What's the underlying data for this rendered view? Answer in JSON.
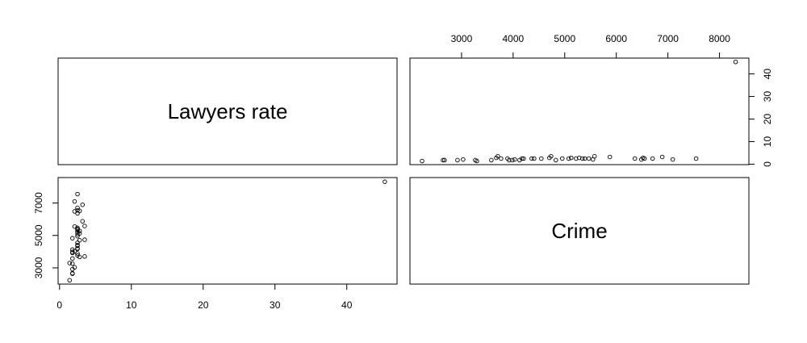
{
  "chart_data": {
    "type": "pairs",
    "variables": [
      {
        "name": "Lawyers rate",
        "lim": [
          -0.2,
          47
        ],
        "ticks": [
          0,
          10,
          20,
          30,
          40
        ],
        "values": [
          1.4,
          1.8,
          1.8,
          1.8,
          2.1,
          1.8,
          1.4,
          1.8,
          2.8,
          3.5,
          2.5,
          2.5,
          1.8,
          1.8,
          2.1,
          1.8,
          2.5,
          2.5,
          2.5,
          2.5,
          2.5,
          2.8,
          3.5,
          1.8,
          2.5,
          2.5,
          2.8,
          2.5,
          2.8,
          2.5,
          2.5,
          2.5,
          2.1,
          3.5,
          3.2,
          2.5,
          2.1,
          2.8,
          2.5,
          2.5,
          3.2,
          2.1,
          2.5,
          45.3
        ]
      },
      {
        "name": "Crime",
        "lim": [
          2000,
          8570
        ],
        "ticks": [
          3000,
          4000,
          5000,
          6000,
          7000,
          8000
        ],
        "side_ticks": [
          3000,
          5000,
          7000
        ],
        "values": [
          2235,
          2641,
          2670,
          2922,
          3031,
          3266,
          3297,
          3578,
          3672,
          3703,
          3766,
          3891,
          3922,
          3984,
          4031,
          4125,
          4172,
          4203,
          4360,
          4407,
          4547,
          4703,
          4735,
          4828,
          4953,
          5078,
          5125,
          5219,
          5281,
          5344,
          5391,
          5469,
          5547,
          5578,
          5875,
          6360,
          6485,
          6516,
          6547,
          6703,
          6891,
          7094,
          7547,
          8313
        ]
      }
    ]
  }
}
